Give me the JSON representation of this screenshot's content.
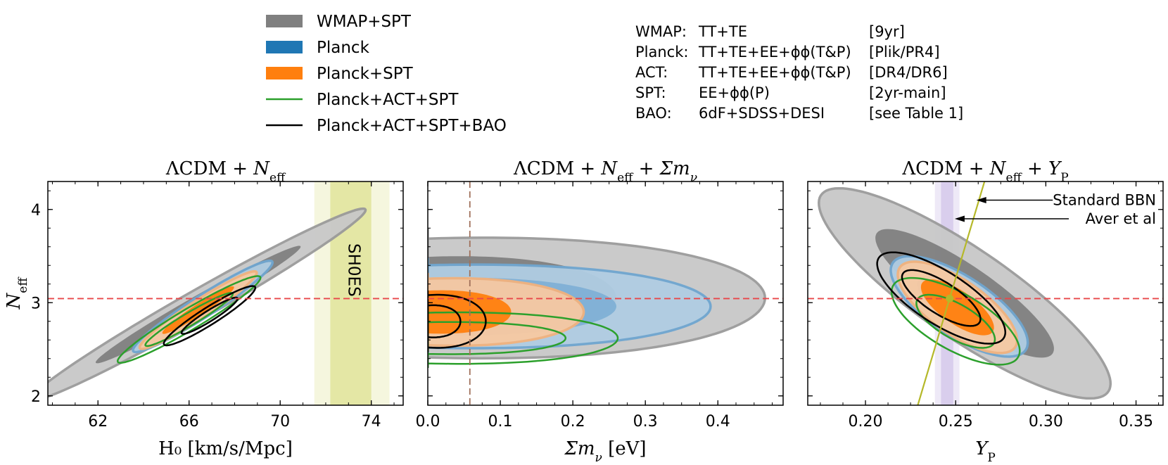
{
  "colors": {
    "wmap": "#808080",
    "wmap_light": "#c8c8c8",
    "planck": "#1f77b4",
    "planck_fill_light": "#b0cde3",
    "planck_fill_dark": "#7fb0d5",
    "planck_spt": "#ff7f0e",
    "planck_spt_light": "#f7c9a2",
    "green": "#2ca02c",
    "black": "#000000",
    "ref_line": "#e8474a",
    "shoes": "#c7cf4a",
    "bbn": "#b5b829",
    "aver": "#b39ddb",
    "mnu_line": "#a0705a"
  },
  "legend": [
    {
      "label": "WMAP+SPT",
      "kind": "patch",
      "color": "#808080"
    },
    {
      "label": "Planck",
      "kind": "patch",
      "color": "#1f77b4"
    },
    {
      "label": "Planck+SPT",
      "kind": "patch",
      "color": "#ff7f0e"
    },
    {
      "label": "Planck+ACT+SPT",
      "kind": "line",
      "color": "#2ca02c"
    },
    {
      "label": "Planck+ACT+SPT+BAO",
      "kind": "line",
      "color": "#000000"
    }
  ],
  "datasets": [
    {
      "name": "WMAP:",
      "spectra": "TT+TE",
      "release": "[9yr]"
    },
    {
      "name": "Planck:",
      "spectra": "TT+TE+EE+ϕϕ(T&P)",
      "release": "[Plik/PR4]"
    },
    {
      "name": "ACT:",
      "spectra": "TT+TE+EE+ϕϕ(T&P)",
      "release": "[DR4/DR6]"
    },
    {
      "name": "SPT:",
      "spectra": "EE+ϕϕ(P)",
      "release": "[2yr-main]"
    },
    {
      "name": "BAO:",
      "spectra": "6dF+SDSS+DESI",
      "release": "[see Table 1]"
    }
  ],
  "chart_data": [
    {
      "type": "contour",
      "title": "ΛCDM + N_eff",
      "xlabel": "H₀ [km/s/Mpc]",
      "ylabel": "N_eff",
      "xlim": [
        59.8,
        75.4
      ],
      "ylim": [
        1.9,
        4.3
      ],
      "xticks": [
        62,
        66,
        70,
        74
      ],
      "xtick_labels": [
        "62",
        "66",
        "70",
        "74"
      ],
      "yticks": [
        2,
        3,
        4
      ],
      "ytick_labels": [
        "2",
        "3",
        "4"
      ],
      "reference_line": {
        "axis": "y",
        "value": 3.044
      },
      "band": {
        "label": "SH0ES",
        "center": 73.2,
        "sigma1": [
          72.2,
          74.0
        ],
        "sigma2": [
          71.5,
          74.8
        ]
      },
      "contours": [
        {
          "series": "WMAP+SPT",
          "fill": true,
          "center": [
            66.4,
            2.98
          ],
          "sx": 3.0,
          "sy": 0.42,
          "rho": 0.985,
          "levels": [
            1,
            2
          ]
        },
        {
          "series": "Planck",
          "fill": true,
          "center": [
            66.6,
            2.96
          ],
          "sx": 1.25,
          "sy": 0.2,
          "rho": 0.96,
          "levels": [
            1,
            2
          ]
        },
        {
          "series": "Planck+SPT",
          "fill": true,
          "center": [
            66.4,
            2.92
          ],
          "sx": 1.05,
          "sy": 0.17,
          "rho": 0.96,
          "levels": [
            1,
            2
          ]
        },
        {
          "series": "Planck+ACT+SPT",
          "fill": false,
          "center": [
            66.0,
            2.82
          ],
          "sx": 1.28,
          "sy": 0.19,
          "rho": 0.96,
          "levels": [
            1,
            2
          ]
        },
        {
          "series": "Planck+ACT+SPT+BAO",
          "fill": false,
          "center": [
            66.9,
            2.86
          ],
          "sx": 0.82,
          "sy": 0.13,
          "rho": 0.94,
          "levels": [
            1,
            2
          ]
        }
      ]
    },
    {
      "type": "contour",
      "title": "ΛCDM + N_eff + Σm_ν",
      "xlabel": "Σm_ν [eV]",
      "ylabel": "",
      "xlim": [
        0.0,
        0.49
      ],
      "ylim": [
        1.9,
        4.3
      ],
      "xticks": [
        0.0,
        0.1,
        0.2,
        0.3,
        0.4
      ],
      "xtick_labels": [
        "0.0",
        "0.1",
        "0.2",
        "0.3",
        "0.4"
      ],
      "yticks": [
        2,
        3,
        4
      ],
      "ytick_labels": [
        "",
        "",
        ""
      ],
      "reference_line": {
        "axis": "y",
        "value": 3.044
      },
      "vertical_line": {
        "value": 0.058
      },
      "contours": [
        {
          "series": "WMAP+SPT",
          "fill": true,
          "half": true,
          "center": [
            0.0,
            3.05
          ],
          "xmax2": 0.465,
          "xmax1": 0.26,
          "yh2": 0.75,
          "yh1": 0.52
        },
        {
          "series": "Planck",
          "fill": true,
          "half": true,
          "center": [
            0.0,
            2.96
          ],
          "xmax2": 0.39,
          "xmax1": 0.26,
          "yh2": 0.52,
          "yh1": 0.36
        },
        {
          "series": "Planck+SPT",
          "fill": true,
          "half": true,
          "center": [
            0.0,
            2.9
          ],
          "xmax2": 0.215,
          "xmax1": 0.115,
          "yh2": 0.42,
          "yh1": 0.27
        },
        {
          "series": "Planck+ACT+SPT",
          "fill": false,
          "half": true,
          "center": [
            0.0,
            2.62
          ],
          "xmax2": 0.262,
          "xmax1": 0.19,
          "yh2": 0.32,
          "yh1": 0.2
        },
        {
          "series": "Planck+ACT+SPT+BAO",
          "fill": false,
          "half": true,
          "center": [
            0.0,
            2.8
          ],
          "xmax2": 0.08,
          "xmax1": 0.045,
          "yh2": 0.33,
          "yh1": 0.2
        }
      ]
    },
    {
      "type": "contour",
      "title": "ΛCDM + N_eff + Y_P",
      "xlabel": "Y_P",
      "ylabel": "",
      "xlim": [
        0.168,
        0.365
      ],
      "ylim": [
        1.9,
        4.3
      ],
      "xticks": [
        0.2,
        0.25,
        0.3,
        0.35
      ],
      "xtick_labels": [
        "0.20",
        "0.25",
        "0.30",
        "0.35"
      ],
      "yticks": [
        2,
        3,
        4
      ],
      "ytick_labels": [
        "",
        "",
        ""
      ],
      "reference_line": {
        "axis": "y",
        "value": 3.044
      },
      "band": {
        "label": "",
        "center": 0.2453,
        "sigma1": [
          0.2419,
          0.2487
        ],
        "sigma2": [
          0.2385,
          0.2521
        ]
      },
      "bbn_line": {
        "points": [
          [
            0.229,
            1.9
          ],
          [
            0.266,
            4.3
          ]
        ],
        "marker": [
          0.2467,
          3.044
        ]
      },
      "annotations": [
        {
          "text": "Standard BBN",
          "arrow_to": [
            0.2615,
            4.1
          ]
        },
        {
          "text": "Aver et al",
          "arrow_to": [
            0.2495,
            3.9
          ]
        }
      ],
      "contours": [
        {
          "series": "WMAP+SPT",
          "fill": true,
          "center": [
            0.255,
            3.1
          ],
          "sx": 0.033,
          "sy": 0.46,
          "rho": -0.86,
          "levels": [
            1,
            2
          ]
        },
        {
          "series": "Planck",
          "fill": true,
          "center": [
            0.252,
            2.96
          ],
          "sx": 0.0155,
          "sy": 0.22,
          "rho": -0.72,
          "levels": [
            1,
            2
          ]
        },
        {
          "series": "Planck+SPT",
          "fill": true,
          "center": [
            0.251,
            2.95
          ],
          "sx": 0.0135,
          "sy": 0.2,
          "rho": -0.72,
          "levels": [
            1,
            2
          ]
        },
        {
          "series": "Planck+ACT+SPT",
          "fill": false,
          "center": [
            0.25,
            2.8
          ],
          "sx": 0.0145,
          "sy": 0.19,
          "rho": -0.68,
          "levels": [
            1,
            2
          ]
        },
        {
          "series": "Planck+ACT+SPT+BAO",
          "fill": false,
          "center": [
            0.242,
            3.05
          ],
          "sx": 0.0145,
          "sy": 0.2,
          "rho": -0.75,
          "levels": [
            1,
            2
          ]
        }
      ]
    }
  ]
}
